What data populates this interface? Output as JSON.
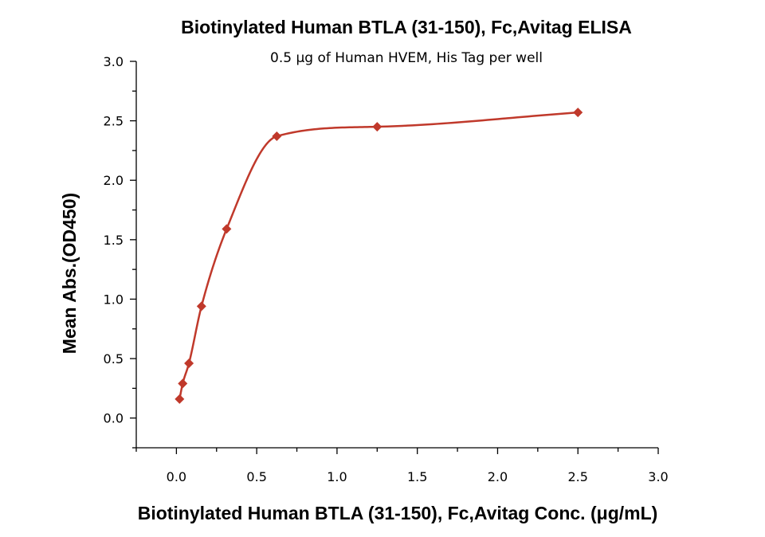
{
  "chart_data": {
    "type": "scatter",
    "title": "Biotinylated Human BTLA (31-150), Fc,Avitag ELISA",
    "subtitle": "0.5 μg of Human HVEM, His Tag per well",
    "xlabel": "Biotinylated Human BTLA (31-150), Fc,Avitag Conc. (μg/mL)",
    "ylabel": "Mean Abs.(OD450)",
    "xlim": [
      -0.25,
      3.0
    ],
    "ylim": [
      -0.25,
      3.0
    ],
    "xticks": [
      "0.0",
      "0.5",
      "1.0",
      "1.5",
      "2.0",
      "2.5",
      "3.0"
    ],
    "yticks": [
      "0.0",
      "0.5",
      "1.0",
      "1.5",
      "2.0",
      "2.5",
      "3.0"
    ],
    "grid": false,
    "series": [
      {
        "color": "#c0392b",
        "marker": "diamond",
        "fit": "4PL",
        "x": [
          0.0195,
          0.039,
          0.078,
          0.156,
          0.3125,
          0.625,
          1.25,
          2.5
        ],
        "y": [
          0.16,
          0.29,
          0.46,
          0.94,
          1.59,
          2.37,
          2.45,
          2.57
        ]
      }
    ]
  }
}
